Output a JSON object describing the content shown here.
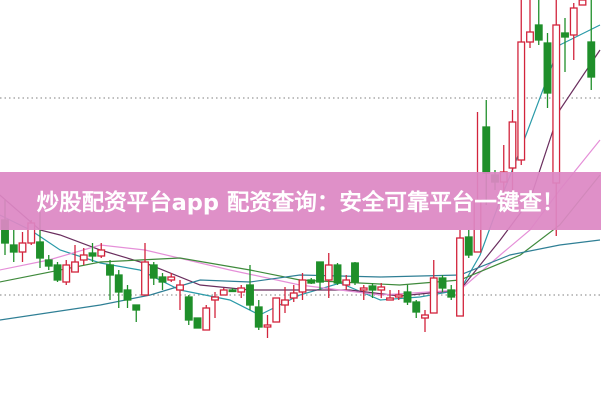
{
  "banner": {
    "text": "炒股配资平台app 配资查询：安全可靠平台一键查！"
  },
  "chart_data": {
    "type": "candlestick",
    "title": "",
    "xlabel": "",
    "ylabel": "",
    "axes_visible": false,
    "grid": false,
    "colors": {
      "up": "#d2243c",
      "down": "#1f8f2a",
      "banner": "#dd88c4",
      "reference_line": "#999999"
    },
    "reference_lines": [
      105,
      302
    ],
    "candles_ohlc": [
      [
        180,
        200,
        145,
        157
      ],
      [
        155,
        170,
        138,
        148
      ],
      [
        148,
        168,
        138,
        157
      ],
      [
        157,
        180,
        155,
        177
      ],
      [
        158,
        188,
        132,
        142
      ],
      [
        140,
        145,
        130,
        134
      ],
      [
        135,
        138,
        118,
        120
      ],
      [
        118,
        140,
        115,
        135
      ],
      [
        128,
        155,
        128,
        138
      ],
      [
        140,
        152,
        135,
        145
      ],
      [
        147,
        157,
        138,
        144
      ],
      [
        144,
        157,
        142,
        150
      ],
      [
        135,
        140,
        100,
        125
      ],
      [
        125,
        130,
        92,
        108
      ],
      [
        110,
        115,
        92,
        100
      ],
      [
        95,
        95,
        78,
        90
      ],
      [
        105,
        157,
        105,
        138
      ],
      [
        135,
        138,
        115,
        122
      ],
      [
        123,
        127,
        110,
        118
      ],
      [
        120,
        127,
        118,
        123
      ],
      [
        110,
        120,
        90,
        115
      ],
      [
        103,
        105,
        75,
        80
      ],
      [
        82,
        82,
        72,
        72
      ],
      [
        70,
        95,
        70,
        92
      ],
      [
        100,
        108,
        82,
        103
      ],
      [
        105,
        112,
        105,
        110
      ],
      [
        110,
        112,
        108,
        109
      ],
      [
        108,
        115,
        102,
        112
      ],
      [
        115,
        135,
        90,
        95
      ],
      [
        93,
        100,
        70,
        73
      ],
      [
        73,
        85,
        62,
        75
      ],
      [
        78,
        102,
        78,
        102
      ],
      [
        95,
        113,
        87,
        100
      ],
      [
        102,
        115,
        98,
        107
      ],
      [
        108,
        127,
        100,
        120
      ],
      [
        120,
        122,
        116,
        117
      ],
      [
        138,
        138,
        110,
        118
      ],
      [
        120,
        147,
        102,
        135
      ],
      [
        135,
        137,
        115,
        117
      ],
      [
        115,
        125,
        110,
        120
      ],
      [
        137,
        138,
        115,
        118
      ],
      [
        110,
        115,
        100,
        112
      ],
      [
        114,
        117,
        102,
        110
      ],
      [
        110,
        117,
        102,
        113
      ],
      [
        100,
        110,
        100,
        102
      ],
      [
        103,
        110,
        100,
        105
      ],
      [
        108,
        115,
        95,
        98
      ],
      [
        98,
        100,
        82,
        88
      ],
      [
        82,
        90,
        68,
        85
      ],
      [
        87,
        140,
        87,
        122
      ],
      [
        122,
        125,
        108,
        112
      ],
      [
        110,
        115,
        100,
        103
      ],
      [
        84,
        170,
        84,
        162
      ],
      [
        163,
        170,
        142,
        145
      ],
      [
        148,
        288,
        148,
        200
      ],
      [
        273,
        300,
        195,
        227
      ],
      [
        225,
        230,
        210,
        218
      ],
      [
        218,
        255,
        200,
        228
      ],
      [
        232,
        290,
        200,
        278
      ],
      [
        240,
        400,
        235,
        358
      ],
      [
        358,
        400,
        352,
        368
      ],
      [
        375,
        400,
        355,
        360
      ],
      [
        357,
        367,
        292,
        307
      ],
      [
        217,
        400,
        164,
        375
      ],
      [
        367,
        382,
        328,
        363
      ],
      [
        365,
        397,
        340,
        392
      ],
      [
        395,
        400,
        395,
        400
      ],
      [
        358,
        400,
        310,
        323
      ]
    ],
    "moving_averages": [
      {
        "color": "#2a9aa8",
        "points": [
          [
            -0.6,
            185
          ],
          [
            2.9,
            170
          ],
          [
            6.3,
            150
          ],
          [
            10.9,
            137
          ],
          [
            15.4,
            130
          ],
          [
            20,
            110
          ],
          [
            25.7,
            100
          ],
          [
            29.1,
            85
          ],
          [
            33.7,
            105
          ],
          [
            38.3,
            117
          ],
          [
            42.9,
            100
          ],
          [
            47.4,
            103
          ],
          [
            52,
            110
          ],
          [
            54.3,
            145
          ],
          [
            56.6,
            200
          ],
          [
            58.9,
            250
          ],
          [
            63.4,
            355
          ],
          [
            68,
            375
          ]
        ]
      },
      {
        "color": "#6a2e5e",
        "points": [
          [
            -0.6,
            205
          ],
          [
            4,
            170
          ],
          [
            6.3,
            165
          ],
          [
            10.9,
            150
          ],
          [
            16.6,
            135
          ],
          [
            22.3,
            115
          ],
          [
            28,
            110
          ],
          [
            33.7,
            110
          ],
          [
            39.4,
            110
          ],
          [
            45.1,
            104
          ],
          [
            52,
            110
          ],
          [
            56.6,
            160
          ],
          [
            60,
            200
          ],
          [
            63.4,
            290
          ],
          [
            68,
            350
          ]
        ]
      },
      {
        "color": "#e58fd8",
        "points": [
          [
            -0.6,
            130
          ],
          [
            5,
            140
          ],
          [
            10.9,
            155
          ],
          [
            16,
            150
          ],
          [
            25.7,
            130
          ],
          [
            33.7,
            115
          ],
          [
            42.9,
            105
          ],
          [
            52,
            110
          ],
          [
            56.6,
            145
          ],
          [
            60,
            170
          ],
          [
            63.4,
            210
          ],
          [
            68,
            260
          ]
        ]
      },
      {
        "color": "#3f8a3c",
        "points": [
          [
            -0.6,
            118
          ],
          [
            10.9,
            138
          ],
          [
            20,
            142
          ],
          [
            28,
            130
          ],
          [
            33.7,
            120
          ],
          [
            45.1,
            115
          ],
          [
            52,
            120
          ],
          [
            58.9,
            145
          ],
          [
            63.4,
            175
          ],
          [
            68,
            225
          ]
        ]
      },
      {
        "color": "#2f7f95",
        "points": [
          [
            -0.6,
            80
          ],
          [
            10.9,
            95
          ],
          [
            16.6,
            105
          ],
          [
            22.3,
            120
          ],
          [
            28,
            118
          ],
          [
            33.7,
            125
          ],
          [
            42.9,
            123
          ],
          [
            52,
            125
          ],
          [
            57.7,
            145
          ],
          [
            63.4,
            155
          ],
          [
            68,
            160
          ]
        ]
      }
    ]
  }
}
